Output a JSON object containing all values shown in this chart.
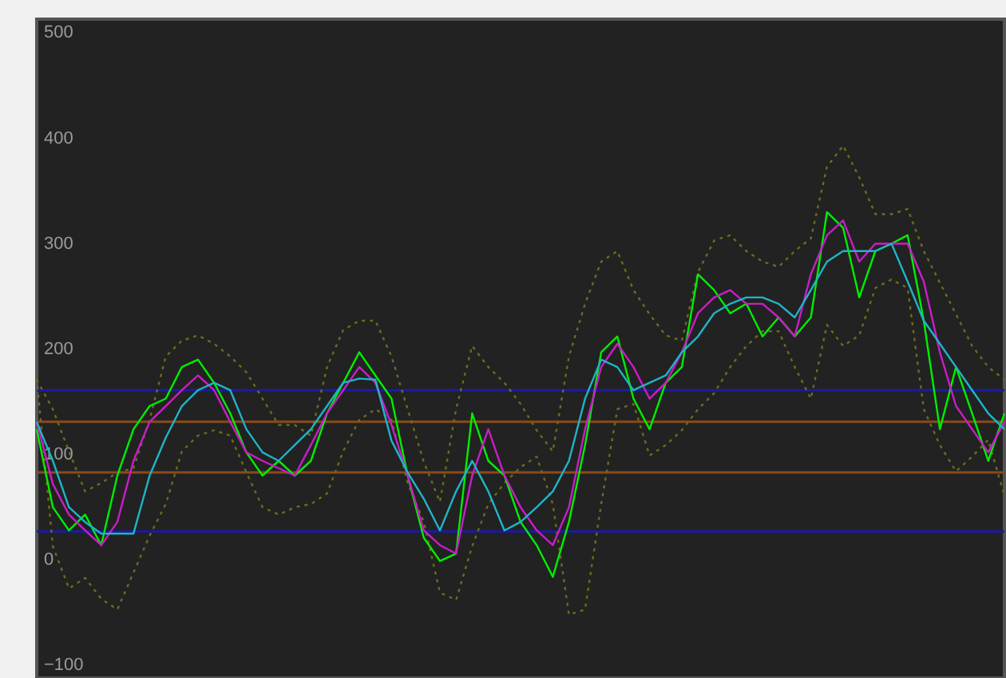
{
  "chart_data": {
    "type": "line",
    "categories": [
      null,
      null,
      null,
      null,
      null,
      null,
      null,
      null,
      null,
      null,
      null,
      null,
      null,
      null,
      null,
      null,
      null,
      null,
      null,
      null,
      null,
      null,
      null,
      null,
      null,
      null,
      null,
      null,
      null,
      null,
      null,
      null,
      null,
      null,
      null,
      null,
      null,
      null,
      null,
      null,
      null,
      null,
      null,
      null,
      null,
      null,
      null,
      null,
      null,
      null,
      null,
      null,
      null,
      null,
      null,
      null,
      null,
      null,
      null,
      null,
      null
    ],
    "series": [
      {
        "color": "#6b6b1e",
        "line_style": "dotted",
        "values": [
          178,
          150,
          110,
          72,
          80,
          90,
          94,
          140,
          200,
          215,
          220,
          212,
          200,
          185,
          160,
          135,
          135,
          125,
          190,
          225,
          234,
          234,
          200,
          150,
          100,
          62,
          150,
          210,
          190,
          175,
          155,
          130,
          110,
          200,
          250,
          290,
          300,
          263,
          240,
          220,
          215,
          280,
          310,
          315,
          300,
          290,
          285,
          300,
          312,
          380,
          400,
          370,
          335,
          335,
          340,
          300,
          270,
          240,
          210,
          190,
          178
        ]
      },
      {
        "color": "#6b6b1e",
        "line_style": "dotted",
        "values": [
          179,
          20,
          -20,
          -10,
          -30,
          -40,
          -5,
          30,
          60,
          110,
          125,
          130,
          125,
          90,
          57,
          50,
          57,
          60,
          70,
          110,
          140,
          150,
          140,
          80,
          43,
          -24,
          -31,
          20,
          60,
          80,
          95,
          105,
          60,
          -45,
          -40,
          60,
          150,
          155,
          106,
          116,
          130,
          150,
          165,
          190,
          210,
          224,
          224,
          190,
          160,
          230,
          210,
          220,
          265,
          273,
          265,
          150,
          116,
          91,
          105,
          121,
          68
        ]
      },
      {
        "color": "#00ee00",
        "line_style": "solid",
        "values": [
          131,
          57,
          35,
          50,
          21,
          87,
          131,
          153,
          160,
          190,
          197,
          175,
          146,
          109,
          87,
          101,
          87,
          101,
          146,
          175,
          204,
          182,
          160,
          87,
          28,
          6,
          13,
          146,
          101,
          87,
          43,
          21,
          -9,
          43,
          116,
          204,
          219,
          160,
          131,
          175,
          190,
          278,
          263,
          241,
          250,
          219,
          237,
          219,
          237,
          337,
          322,
          256,
          300,
          307,
          315,
          234,
          131,
          190,
          146,
          101,
          146
        ]
      },
      {
        "color": "#c81ec8",
        "line_style": "solid",
        "values": [
          138,
          79,
          50,
          35,
          21,
          43,
          101,
          138,
          153,
          168,
          182,
          168,
          138,
          109,
          101,
          94,
          87,
          116,
          146,
          168,
          190,
          175,
          135,
          87,
          35,
          21,
          13,
          87,
          131,
          87,
          57,
          35,
          21,
          57,
          131,
          190,
          212,
          190,
          160,
          175,
          204,
          241,
          256,
          263,
          250,
          250,
          237,
          219,
          278,
          315,
          329,
          290,
          307,
          307,
          307,
          271,
          204,
          153,
          131,
          109,
          138
        ]
      },
      {
        "color": "#1fb4c8",
        "line_style": "solid",
        "values": [
          138,
          101,
          57,
          43,
          32,
          32,
          32,
          87,
          123,
          153,
          168,
          175,
          168,
          131,
          109,
          101,
          116,
          131,
          153,
          175,
          179,
          178,
          120,
          90,
          65,
          35,
          72,
          101,
          72,
          35,
          43,
          57,
          72,
          101,
          160,
          197,
          190,
          168,
          175,
          182,
          204,
          219,
          241,
          250,
          256,
          256,
          250,
          237,
          263,
          290,
          300,
          300,
          300,
          307,
          271,
          234,
          212,
          190,
          168,
          146,
          131
        ]
      }
    ],
    "ylim": [
      -105,
      520
    ],
    "yticks": [
      -100,
      0,
      100,
      200,
      300,
      400,
      500
    ],
    "tick_labels": "y",
    "grid": false,
    "ref_lines": [
      {
        "axis": "y",
        "value": 168,
        "color": "#1a1aa8"
      },
      {
        "axis": "y",
        "value": 138,
        "color": "#8a4a1a"
      },
      {
        "axis": "y",
        "value": 90,
        "color": "#8a4a1a"
      },
      {
        "axis": "y",
        "value": 34,
        "color": "#1a1aa8"
      }
    ]
  }
}
